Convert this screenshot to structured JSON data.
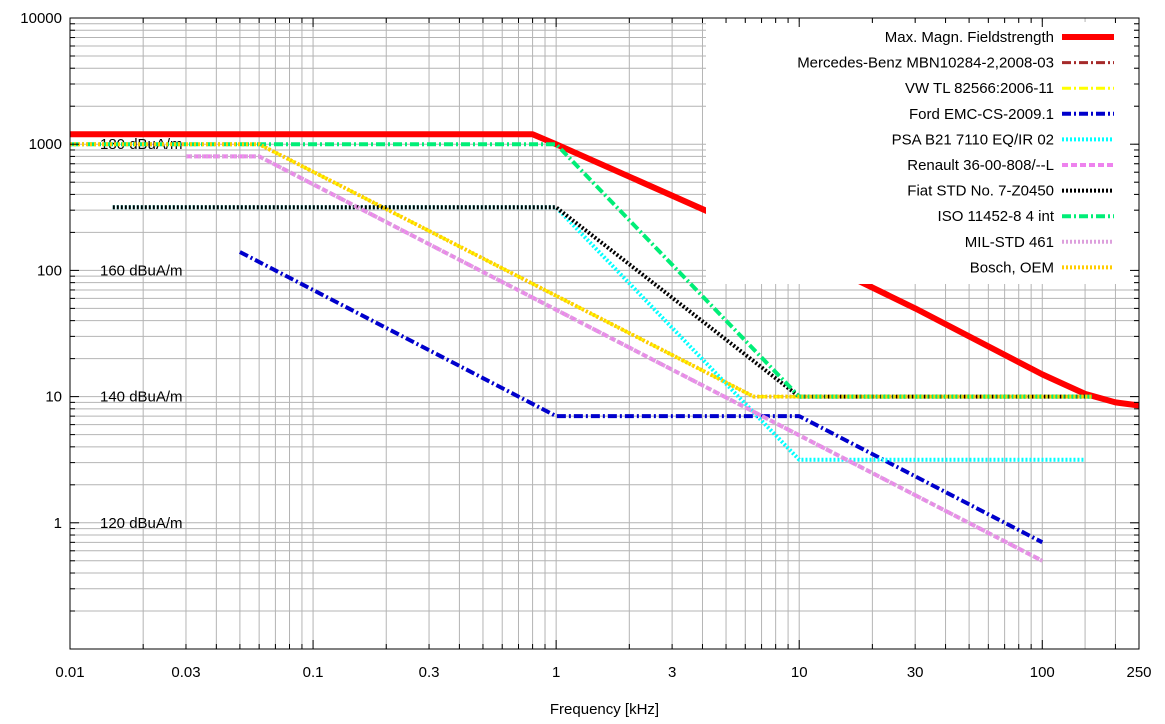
{
  "chart_data": {
    "type": "line",
    "xlabel": "Frequency [kHz]",
    "ylabel": "",
    "xscale": "log",
    "yscale": "log",
    "xlim": [
      0.01,
      250
    ],
    "ylim": [
      0.1,
      10000
    ],
    "grid": true,
    "legend_position": "top-right",
    "x_ticks": [
      {
        "value": 0.01,
        "label": "0.01"
      },
      {
        "value": 0.03,
        "label": "0.03"
      },
      {
        "value": 0.1,
        "label": "0.1"
      },
      {
        "value": 0.3,
        "label": "0.3"
      },
      {
        "value": 1,
        "label": "1"
      },
      {
        "value": 3,
        "label": "3"
      },
      {
        "value": 10,
        "label": "10"
      },
      {
        "value": 30,
        "label": "30"
      },
      {
        "value": 100,
        "label": "100"
      },
      {
        "value": 250,
        "label": "250"
      }
    ],
    "y_ticks": [
      {
        "value": 1,
        "label": "1"
      },
      {
        "value": 10,
        "label": "10"
      },
      {
        "value": 100,
        "label": "100"
      },
      {
        "value": 1000,
        "label": "1000"
      },
      {
        "value": 10000,
        "label": "10000"
      }
    ],
    "annotations": [
      {
        "text": "180 dBuA/m",
        "y": 1000
      },
      {
        "text": "160 dBuA/m",
        "y": 100
      },
      {
        "text": "140 dBuA/m",
        "y": 10
      },
      {
        "text": "120 dBuA/m",
        "y": 1
      }
    ],
    "series": [
      {
        "name": "Max. Magn. Fieldstrength",
        "color": "#ff0000",
        "style": "solid",
        "width": 6,
        "x": [
          0.01,
          0.8,
          1,
          10,
          30,
          100,
          150,
          200,
          250
        ],
        "y": [
          1200,
          1200,
          1000,
          140,
          50,
          15,
          10.5,
          9,
          8.5
        ]
      },
      {
        "name": "Mercedes-Benz MBN10284-2,2008-03",
        "color": "#a52a2a",
        "style": "dashdot",
        "width": 3,
        "x": [
          0.01,
          0.06,
          6.5,
          160
        ],
        "y": [
          1000,
          1000,
          10,
          10
        ]
      },
      {
        "name": "VW TL 82566:2006-11",
        "color": "#ffff00",
        "style": "dashdot",
        "width": 3,
        "x": [
          0.01,
          0.06,
          6.5,
          160
        ],
        "y": [
          1000,
          1000,
          10,
          10
        ]
      },
      {
        "name": "Ford EMC-CS-2009.1",
        "color": "#0000cc",
        "style": "dashdot",
        "width": 4,
        "x": [
          0.05,
          1,
          10,
          100
        ],
        "y": [
          140,
          7,
          7,
          0.7
        ]
      },
      {
        "name": "PSA B21 7110 EQ/IR 02",
        "color": "#00ffff",
        "style": "dotted",
        "width": 4,
        "x": [
          0.015,
          1,
          10,
          150
        ],
        "y": [
          316,
          316,
          3.16,
          3.16
        ]
      },
      {
        "name": "Renault 36-00-808/--L",
        "color": "#ee82ee",
        "style": "dashed",
        "width": 4,
        "x": [
          0.03,
          0.06,
          100
        ],
        "y": [
          800,
          800,
          0.5
        ]
      },
      {
        "name": "Fiat STD No. 7-Z0450",
        "color": "#000000",
        "style": "dotted",
        "width": 4,
        "x": [
          0.015,
          1,
          10,
          160
        ],
        "y": [
          316,
          316,
          10,
          10
        ]
      },
      {
        "name": "ISO 11452-8 4 int",
        "color": "#00ee77",
        "style": "dashdot",
        "width": 4,
        "x": [
          0.01,
          1,
          10,
          160
        ],
        "y": [
          1000,
          1000,
          10,
          10
        ]
      },
      {
        "name": "MIL-STD 461",
        "color": "#dda0dd",
        "style": "dotted",
        "width": 4,
        "x": [
          0.03,
          0.06,
          100
        ],
        "y": [
          800,
          800,
          0.5
        ]
      },
      {
        "name": "Bosch, OEM",
        "color": "#ffcc00",
        "style": "dotted",
        "width": 4,
        "x": [
          0.01,
          0.06,
          6.5,
          160
        ],
        "y": [
          1000,
          1000,
          10,
          10
        ]
      }
    ]
  }
}
